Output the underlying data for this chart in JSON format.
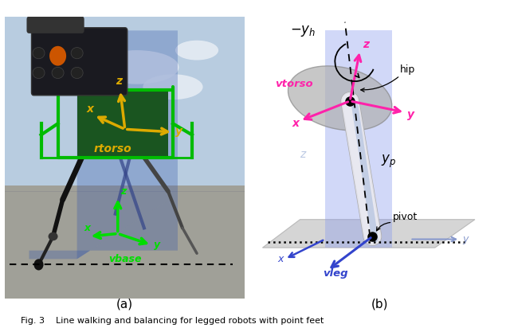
{
  "caption": "Fig. 3    Line walking and balancing for legged robots with point feet",
  "subfig_a_label": "(a)",
  "subfig_b_label": "(b)",
  "background_color": "#ffffff",
  "fig_width": 6.4,
  "fig_height": 4.12,
  "panel_b": {
    "bg_color": "#dce8f8",
    "floor_color": "#c8c8c8",
    "wall_color": "#8899dd",
    "wall_alpha": 0.45,
    "hip_disk_color": "#aaaaaa",
    "leg_white": "#e8e8ee",
    "leg_shadow": "#8899cc",
    "arrow_pink": "#ff22aa",
    "arrow_blue": "#3344cc",
    "text_pink": "#ff22aa",
    "text_blue": "#3344cc",
    "text_black": "#000000",
    "text_grey": "#8899bb"
  }
}
